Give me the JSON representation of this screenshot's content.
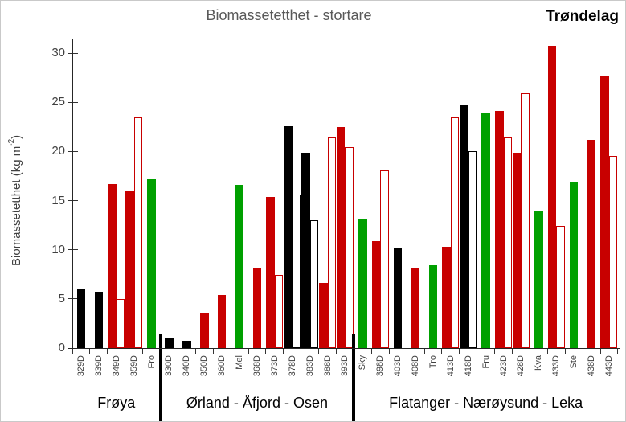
{
  "chart_data": {
    "type": "bar",
    "title": "Biomassetetthet - stortare",
    "corner_label": "Trøndelag",
    "ylabel": "Biomassetetthet (kg m-2)",
    "ylabel_parts": {
      "main": "Biomassetetthet  (kg m",
      "sup": "-2",
      "close": ")"
    },
    "ylim": [
      0,
      30
    ],
    "yticks": [
      0,
      5,
      10,
      15,
      20,
      25,
      30
    ],
    "grid": false,
    "legend": "none",
    "bar_style_note": "solid = filled bar; outline = white bar with colored border",
    "colors": {
      "black": "#000000",
      "red": "#C80000",
      "green": "#00A000"
    },
    "groups": [
      {
        "label": "Frøya",
        "stations": [
          {
            "label": "329D",
            "bars": [
              {
                "color": "black",
                "style": "solid",
                "value": 6.0
              }
            ]
          },
          {
            "label": "339D",
            "bars": [
              {
                "color": "black",
                "style": "solid",
                "value": 5.7
              }
            ]
          },
          {
            "label": "349D",
            "bars": [
              {
                "color": "red",
                "style": "solid",
                "value": 16.7
              },
              {
                "color": "red",
                "style": "outline",
                "value": 5.0
              }
            ]
          },
          {
            "label": "359D",
            "bars": [
              {
                "color": "red",
                "style": "solid",
                "value": 15.9
              },
              {
                "color": "red",
                "style": "outline",
                "value": 23.5
              }
            ]
          },
          {
            "label": "Fro",
            "bars": [
              {
                "color": "green",
                "style": "solid",
                "value": 17.2
              }
            ]
          }
        ]
      },
      {
        "label": "Ørland - Åfjord - Osen",
        "stations": [
          {
            "label": "330D",
            "bars": [
              {
                "color": "black",
                "style": "solid",
                "value": 1.1
              }
            ]
          },
          {
            "label": "340D",
            "bars": [
              {
                "color": "black",
                "style": "solid",
                "value": 0.7
              }
            ]
          },
          {
            "label": "350D",
            "bars": [
              {
                "color": "red",
                "style": "solid",
                "value": 3.5
              }
            ]
          },
          {
            "label": "360D",
            "bars": [
              {
                "color": "red",
                "style": "solid",
                "value": 5.4
              }
            ]
          },
          {
            "label": "Mel",
            "bars": [
              {
                "color": "green",
                "style": "solid",
                "value": 16.6
              }
            ]
          },
          {
            "label": "368D",
            "bars": [
              {
                "color": "red",
                "style": "solid",
                "value": 8.2
              }
            ]
          },
          {
            "label": "373D",
            "bars": [
              {
                "color": "red",
                "style": "solid",
                "value": 15.4
              },
              {
                "color": "red",
                "style": "outline",
                "value": 7.4
              }
            ]
          },
          {
            "label": "378D",
            "bars": [
              {
                "color": "black",
                "style": "solid",
                "value": 22.6
              },
              {
                "color": "black",
                "style": "outline",
                "value": 15.6
              }
            ]
          },
          {
            "label": "383D",
            "bars": [
              {
                "color": "black",
                "style": "solid",
                "value": 19.9
              },
              {
                "color": "black",
                "style": "outline",
                "value": 13.0
              }
            ]
          },
          {
            "label": "388D",
            "bars": [
              {
                "color": "red",
                "style": "solid",
                "value": 6.6
              },
              {
                "color": "red",
                "style": "outline",
                "value": 21.4
              }
            ]
          },
          {
            "label": "393D",
            "bars": [
              {
                "color": "red",
                "style": "solid",
                "value": 22.5
              },
              {
                "color": "red",
                "style": "outline",
                "value": 20.4
              }
            ]
          }
        ]
      },
      {
        "label": "Flatanger - Nærøysund - Leka",
        "stations": [
          {
            "label": "Sky",
            "bars": [
              {
                "color": "green",
                "style": "solid",
                "value": 13.2
              }
            ]
          },
          {
            "label": "398D",
            "bars": [
              {
                "color": "red",
                "style": "solid",
                "value": 10.9
              },
              {
                "color": "red",
                "style": "outline",
                "value": 18.1
              }
            ]
          },
          {
            "label": "403D",
            "bars": [
              {
                "color": "black",
                "style": "solid",
                "value": 10.1
              }
            ]
          },
          {
            "label": "408D",
            "bars": [
              {
                "color": "red",
                "style": "solid",
                "value": 8.1
              }
            ]
          },
          {
            "label": "Tro",
            "bars": [
              {
                "color": "green",
                "style": "solid",
                "value": 8.4
              }
            ]
          },
          {
            "label": "413D",
            "bars": [
              {
                "color": "red",
                "style": "solid",
                "value": 10.3
              },
              {
                "color": "red",
                "style": "outline",
                "value": 23.5
              }
            ]
          },
          {
            "label": "418D",
            "bars": [
              {
                "color": "black",
                "style": "solid",
                "value": 24.7
              },
              {
                "color": "black",
                "style": "outline",
                "value": 20.0
              }
            ]
          },
          {
            "label": "Fru",
            "bars": [
              {
                "color": "green",
                "style": "solid",
                "value": 23.9
              }
            ]
          },
          {
            "label": "423D",
            "bars": [
              {
                "color": "red",
                "style": "solid",
                "value": 24.1
              },
              {
                "color": "red",
                "style": "outline",
                "value": 21.4
              }
            ]
          },
          {
            "label": "428D",
            "bars": [
              {
                "color": "red",
                "style": "solid",
                "value": 19.9
              },
              {
                "color": "red",
                "style": "outline",
                "value": 25.9
              }
            ]
          },
          {
            "label": "Kva",
            "bars": [
              {
                "color": "green",
                "style": "solid",
                "value": 13.9
              }
            ]
          },
          {
            "label": "433D",
            "bars": [
              {
                "color": "red",
                "style": "solid",
                "value": 30.7
              },
              {
                "color": "red",
                "style": "outline",
                "value": 12.4
              }
            ]
          },
          {
            "label": "Ste",
            "bars": [
              {
                "color": "green",
                "style": "solid",
                "value": 16.9
              }
            ]
          },
          {
            "label": "438D",
            "bars": [
              {
                "color": "red",
                "style": "solid",
                "value": 21.2
              }
            ]
          },
          {
            "label": "443D",
            "bars": [
              {
                "color": "red",
                "style": "solid",
                "value": 27.7
              },
              {
                "color": "red",
                "style": "outline",
                "value": 19.5
              }
            ]
          }
        ]
      }
    ]
  }
}
